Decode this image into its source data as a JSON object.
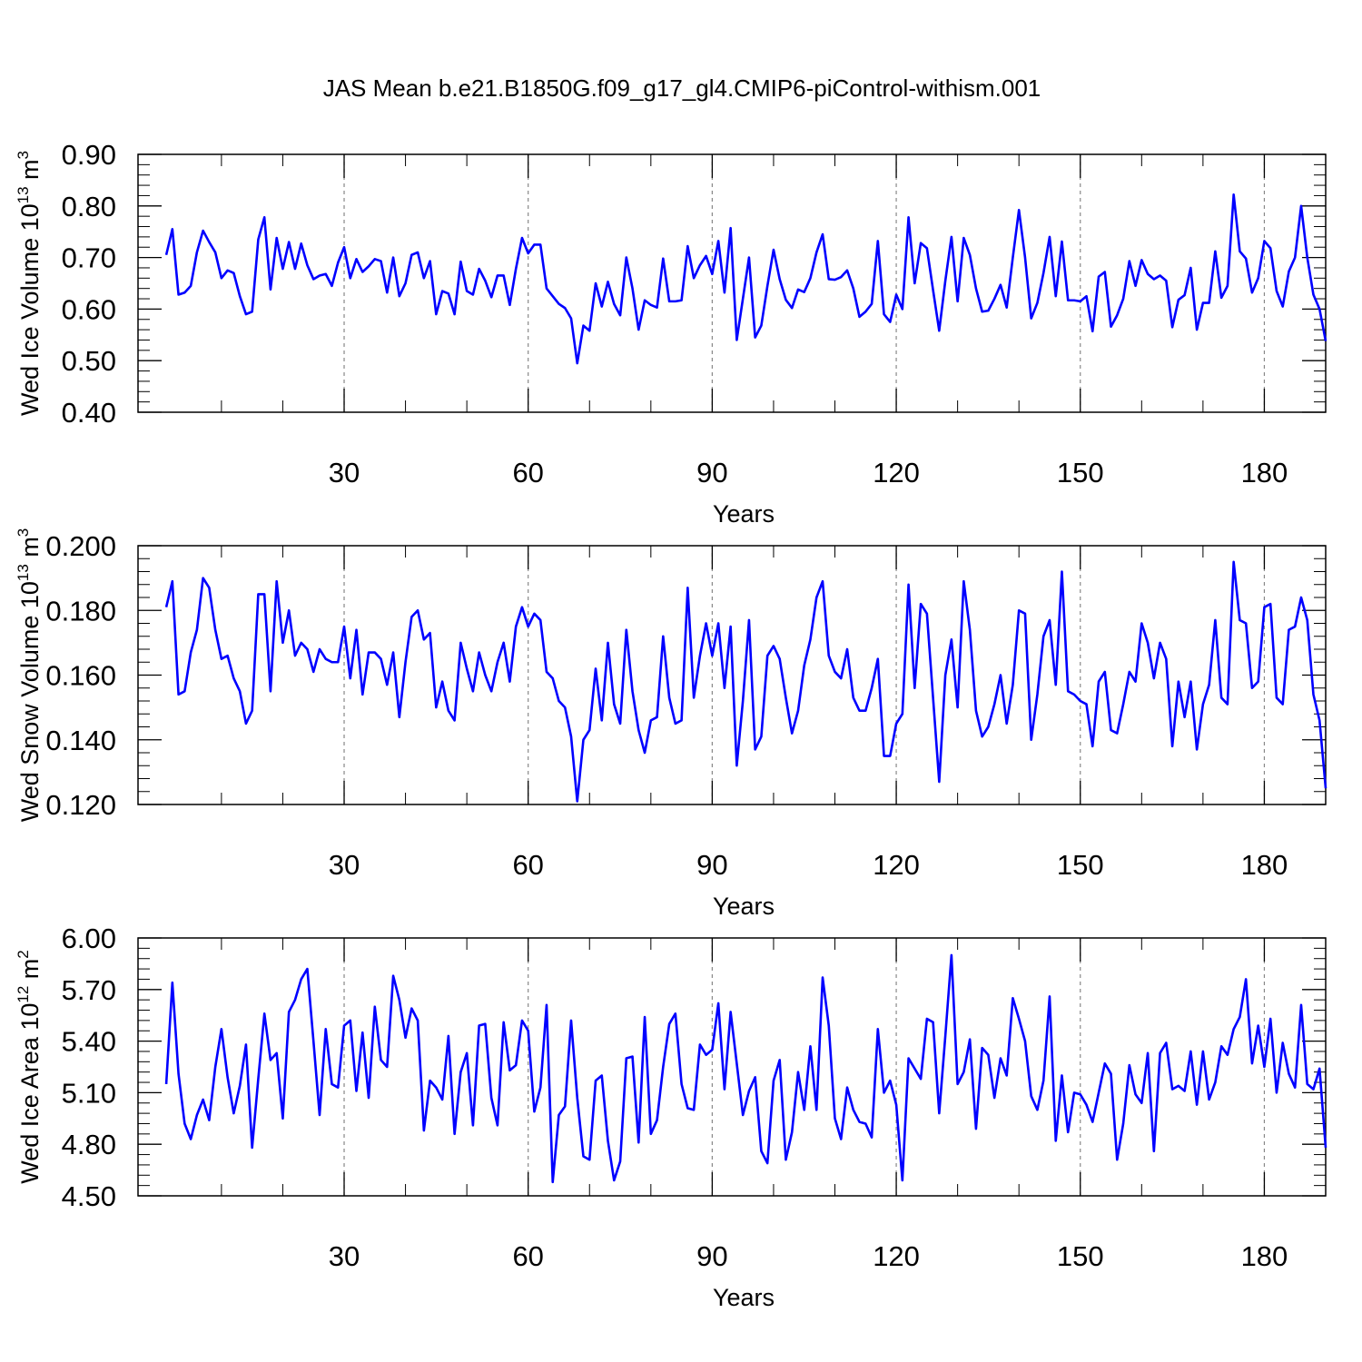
{
  "title": "JAS Mean b.e21.B1850G.f09_g17_gl4.CMIP6-piControl-withism.001",
  "colors": {
    "line": "#0000ff",
    "axis": "#000000",
    "grid": "#888888"
  },
  "chart_data": [
    {
      "type": "line",
      "ylabel": "Wed Ice Volume 10",
      "ylabel_exp": "13",
      "ylabel_unit": " m",
      "ylabel_unit_exp": "3",
      "xlabel": "Years",
      "xlim": [
        1,
        190
      ],
      "ylim": [
        0.4,
        0.9
      ],
      "yticks": [
        "0.40",
        "0.50",
        "0.60",
        "0.70",
        "0.80",
        "0.90"
      ],
      "xticks": [
        "30",
        "60",
        "90",
        "120",
        "150",
        "180"
      ],
      "x_start": 1,
      "values": [
        0.705,
        0.755,
        0.628,
        0.632,
        0.645,
        0.71,
        0.752,
        0.73,
        0.71,
        0.66,
        0.675,
        0.67,
        0.625,
        0.59,
        0.595,
        0.735,
        0.778,
        0.638,
        0.738,
        0.678,
        0.73,
        0.678,
        0.727,
        0.685,
        0.658,
        0.665,
        0.668,
        0.645,
        0.69,
        0.72,
        0.66,
        0.697,
        0.672,
        0.683,
        0.697,
        0.693,
        0.632,
        0.7,
        0.625,
        0.65,
        0.705,
        0.71,
        0.66,
        0.693,
        0.59,
        0.635,
        0.63,
        0.59,
        0.692,
        0.635,
        0.628,
        0.678,
        0.655,
        0.623,
        0.665,
        0.665,
        0.608,
        0.678,
        0.738,
        0.708,
        0.725,
        0.725,
        0.64,
        0.625,
        0.61,
        0.602,
        0.582,
        0.495,
        0.568,
        0.558,
        0.65,
        0.605,
        0.653,
        0.61,
        0.588,
        0.7,
        0.64,
        0.56,
        0.617,
        0.608,
        0.603,
        0.698,
        0.615,
        0.615,
        0.617,
        0.722,
        0.66,
        0.685,
        0.703,
        0.668,
        0.732,
        0.632,
        0.757,
        0.54,
        0.62,
        0.7,
        0.545,
        0.568,
        0.645,
        0.715,
        0.658,
        0.618,
        0.602,
        0.638,
        0.633,
        0.66,
        0.71,
        0.745,
        0.658,
        0.657,
        0.662,
        0.675,
        0.64,
        0.585,
        0.595,
        0.61,
        0.732,
        0.59,
        0.575,
        0.628,
        0.6,
        0.778,
        0.65,
        0.728,
        0.718,
        0.637,
        0.558,
        0.655,
        0.74,
        0.615,
        0.738,
        0.705,
        0.64,
        0.595,
        0.597,
        0.62,
        0.647,
        0.603,
        0.7,
        0.792,
        0.7,
        0.582,
        0.612,
        0.67,
        0.74,
        0.625,
        0.731,
        0.617,
        0.617,
        0.615,
        0.625,
        0.557,
        0.663,
        0.672,
        0.566,
        0.588,
        0.62,
        0.693,
        0.645,
        0.695,
        0.668,
        0.658,
        0.665,
        0.655,
        0.565,
        0.618,
        0.627,
        0.68,
        0.56,
        0.612,
        0.612,
        0.712,
        0.622,
        0.645,
        0.822,
        0.712,
        0.698,
        0.632,
        0.66,
        0.732,
        0.718,
        0.635,
        0.605,
        0.673,
        0.7,
        0.8,
        0.7,
        0.628,
        0.6,
        0.538
      ]
    },
    {
      "type": "line",
      "ylabel": "Wed Snow Volume 10",
      "ylabel_exp": "13",
      "ylabel_unit": " m",
      "ylabel_unit_exp": "3",
      "xlabel": "Years",
      "xlim": [
        1,
        190
      ],
      "ylim": [
        0.12,
        0.2
      ],
      "yticks": [
        "0.120",
        "0.140",
        "0.160",
        "0.180",
        "0.200"
      ],
      "xticks": [
        "30",
        "60",
        "90",
        "120",
        "150",
        "180"
      ],
      "x_start": 1,
      "values": [
        0.181,
        0.189,
        0.154,
        0.155,
        0.167,
        0.174,
        0.19,
        0.187,
        0.174,
        0.165,
        0.166,
        0.159,
        0.155,
        0.145,
        0.149,
        0.185,
        0.185,
        0.155,
        0.189,
        0.17,
        0.18,
        0.166,
        0.17,
        0.168,
        0.161,
        0.168,
        0.165,
        0.164,
        0.164,
        0.175,
        0.159,
        0.174,
        0.154,
        0.167,
        0.167,
        0.165,
        0.157,
        0.167,
        0.147,
        0.164,
        0.178,
        0.18,
        0.171,
        0.173,
        0.15,
        0.158,
        0.149,
        0.146,
        0.17,
        0.162,
        0.155,
        0.167,
        0.16,
        0.155,
        0.164,
        0.17,
        0.158,
        0.175,
        0.181,
        0.175,
        0.179,
        0.177,
        0.161,
        0.159,
        0.152,
        0.15,
        0.141,
        0.121,
        0.14,
        0.143,
        0.162,
        0.146,
        0.17,
        0.151,
        0.145,
        0.174,
        0.155,
        0.143,
        0.136,
        0.146,
        0.147,
        0.172,
        0.153,
        0.145,
        0.146,
        0.187,
        0.153,
        0.166,
        0.176,
        0.166,
        0.176,
        0.156,
        0.175,
        0.132,
        0.152,
        0.177,
        0.137,
        0.141,
        0.166,
        0.169,
        0.165,
        0.153,
        0.142,
        0.149,
        0.163,
        0.171,
        0.184,
        0.189,
        0.166,
        0.161,
        0.159,
        0.168,
        0.153,
        0.149,
        0.149,
        0.156,
        0.165,
        0.135,
        0.135,
        0.145,
        0.148,
        0.188,
        0.156,
        0.182,
        0.179,
        0.153,
        0.127,
        0.16,
        0.171,
        0.15,
        0.189,
        0.174,
        0.149,
        0.141,
        0.144,
        0.151,
        0.16,
        0.145,
        0.157,
        0.18,
        0.179,
        0.14,
        0.154,
        0.172,
        0.177,
        0.157,
        0.192,
        0.155,
        0.154,
        0.152,
        0.151,
        0.138,
        0.158,
        0.161,
        0.143,
        0.142,
        0.151,
        0.161,
        0.158,
        0.176,
        0.17,
        0.159,
        0.17,
        0.165,
        0.138,
        0.158,
        0.147,
        0.158,
        0.137,
        0.151,
        0.157,
        0.177,
        0.153,
        0.151,
        0.195,
        0.177,
        0.176,
        0.156,
        0.158,
        0.181,
        0.182,
        0.153,
        0.151,
        0.174,
        0.175,
        0.184,
        0.177,
        0.154,
        0.146,
        0.125
      ]
    },
    {
      "type": "line",
      "ylabel": "Wed Ice Area 10",
      "ylabel_exp": "12",
      "ylabel_unit": " m",
      "ylabel_unit_exp": "2",
      "xlabel": "Years",
      "xlim": [
        1,
        190
      ],
      "ylim": [
        4.5,
        6.0
      ],
      "yticks": [
        "4.50",
        "4.80",
        "5.10",
        "5.40",
        "5.70",
        "6.00"
      ],
      "xticks": [
        "30",
        "60",
        "90",
        "120",
        "150",
        "180"
      ],
      "x_start": 1,
      "values": [
        5.15,
        5.74,
        5.21,
        4.92,
        4.83,
        4.97,
        5.06,
        4.94,
        5.25,
        5.47,
        5.19,
        4.98,
        5.14,
        5.38,
        4.78,
        5.18,
        5.56,
        5.29,
        5.33,
        4.95,
        5.57,
        5.64,
        5.76,
        5.82,
        5.4,
        4.97,
        5.47,
        5.15,
        5.13,
        5.49,
        5.52,
        5.11,
        5.45,
        5.07,
        5.6,
        5.29,
        5.25,
        5.78,
        5.64,
        5.42,
        5.59,
        5.52,
        4.88,
        5.17,
        5.13,
        5.06,
        5.43,
        4.86,
        5.22,
        5.33,
        4.91,
        5.49,
        5.5,
        5.07,
        4.91,
        5.51,
        5.23,
        5.26,
        5.52,
        5.46,
        4.99,
        5.13,
        5.61,
        4.58,
        4.97,
        5.02,
        5.52,
        5.07,
        4.73,
        4.71,
        5.17,
        5.2,
        4.82,
        4.59,
        4.7,
        5.3,
        5.31,
        4.81,
        5.54,
        4.86,
        4.94,
        5.25,
        5.5,
        5.56,
        5.15,
        5.01,
        5.0,
        5.38,
        5.32,
        5.35,
        5.62,
        5.12,
        5.57,
        5.27,
        4.97,
        5.11,
        5.19,
        4.76,
        4.69,
        5.17,
        5.29,
        4.71,
        4.87,
        5.22,
        5.0,
        5.37,
        5.0,
        5.77,
        5.49,
        4.95,
        4.83,
        5.13,
        5.0,
        4.93,
        4.92,
        4.84,
        5.47,
        5.1,
        5.17,
        5.03,
        4.59,
        5.3,
        5.24,
        5.18,
        5.53,
        5.51,
        4.98,
        5.43,
        5.9,
        5.15,
        5.22,
        5.41,
        4.89,
        5.36,
        5.32,
        5.07,
        5.3,
        5.2,
        5.65,
        5.53,
        5.4,
        5.08,
        5.0,
        5.17,
        5.66,
        4.82,
        5.2,
        4.87,
        5.1,
        5.09,
        5.03,
        4.93,
        5.1,
        5.27,
        5.21,
        4.71,
        4.92,
        5.26,
        5.09,
        5.04,
        5.33,
        4.76,
        5.33,
        5.39,
        5.12,
        5.14,
        5.11,
        5.34,
        5.03,
        5.34,
        5.06,
        5.16,
        5.37,
        5.32,
        5.47,
        5.54,
        5.76,
        5.27,
        5.49,
        5.25,
        5.53,
        5.1,
        5.39,
        5.21,
        5.13,
        5.61,
        5.15,
        5.12,
        5.24,
        4.78
      ]
    }
  ]
}
